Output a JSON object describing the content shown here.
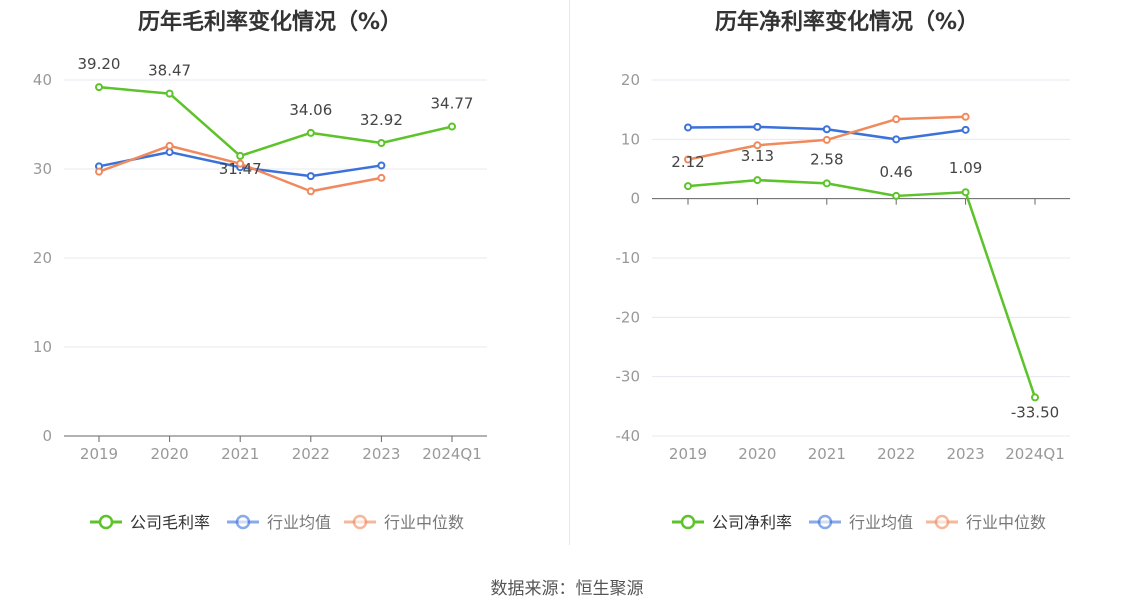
{
  "source": "数据来源：恒生聚源",
  "colors": {
    "company": "#5cc32a",
    "industry_avg": "#3b72d9",
    "industry_median": "#f08a5d",
    "axis": "#666666",
    "grid": "#e6e8ef",
    "tick_text": "#999999",
    "label_text": "#444444"
  },
  "chart_data": [
    {
      "type": "line",
      "title": "历年毛利率变化情况（%）",
      "categories": [
        "2019",
        "2020",
        "2021",
        "2022",
        "2023",
        "2024Q1"
      ],
      "ylim": [
        0,
        40
      ],
      "yticks": [
        0,
        10,
        20,
        30,
        40
      ],
      "legend_position": "bottom",
      "grid": true,
      "series": [
        {
          "name": "公司毛利率",
          "color_key": "company",
          "values": [
            39.2,
            38.47,
            31.47,
            34.06,
            32.92,
            34.77
          ],
          "labels": [
            "39.20",
            "38.47",
            "31.47",
            "34.06",
            "32.92",
            "34.77"
          ]
        },
        {
          "name": "行业均值",
          "color_key": "industry_avg",
          "values": [
            30.3,
            31.9,
            30.2,
            29.2,
            30.4,
            null
          ]
        },
        {
          "name": "行业中位数",
          "color_key": "industry_median",
          "values": [
            29.7,
            32.6,
            30.6,
            27.5,
            29.0,
            null
          ]
        }
      ]
    },
    {
      "type": "line",
      "title": "历年净利率变化情况（%）",
      "categories": [
        "2019",
        "2020",
        "2021",
        "2022",
        "2023",
        "2024Q1"
      ],
      "ylim": [
        -40,
        20
      ],
      "yticks": [
        -40,
        -30,
        -20,
        -10,
        0,
        10,
        20
      ],
      "legend_position": "bottom",
      "grid": true,
      "series": [
        {
          "name": "公司净利率",
          "color_key": "company",
          "values": [
            2.12,
            3.13,
            2.58,
            0.46,
            1.09,
            -33.5
          ],
          "labels": [
            "2.12",
            "3.13",
            "2.58",
            "0.46",
            "1.09",
            "-33.50"
          ]
        },
        {
          "name": "行业均值",
          "color_key": "industry_avg",
          "values": [
            12.0,
            12.1,
            11.7,
            10.0,
            11.6,
            null
          ]
        },
        {
          "name": "行业中位数",
          "color_key": "industry_median",
          "values": [
            6.6,
            9.0,
            9.9,
            13.4,
            13.8,
            null
          ]
        }
      ]
    }
  ]
}
